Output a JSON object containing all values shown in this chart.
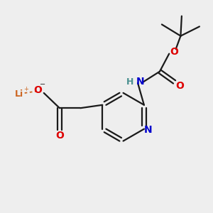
{
  "bg_color": "#eeeeee",
  "bond_color": "#1a1a1a",
  "o_color": "#dd0000",
  "n_color": "#0000cc",
  "li_color": "#cc6622",
  "h_color": "#4a9090",
  "font_size": 9,
  "figsize": [
    3.0,
    3.0
  ],
  "dpi": 100,
  "xlim": [
    0,
    10
  ],
  "ylim": [
    0,
    10
  ]
}
